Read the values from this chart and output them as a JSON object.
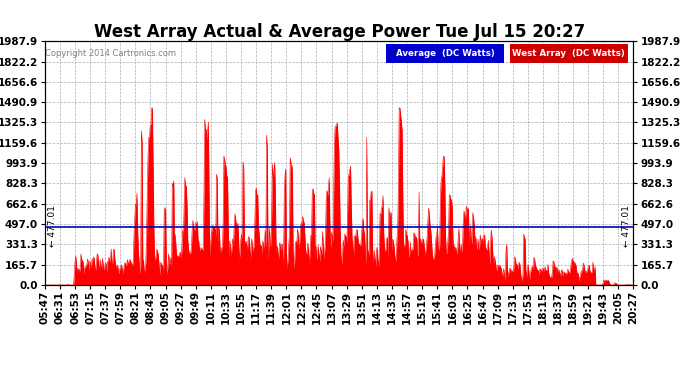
{
  "title": "West Array Actual & Average Power Tue Jul 15 20:27",
  "copyright": "Copyright 2014 Cartronics.com",
  "yticks": [
    0.0,
    165.7,
    331.3,
    497.0,
    662.6,
    828.3,
    993.9,
    1159.6,
    1325.3,
    1490.9,
    1656.6,
    1822.2,
    1987.9
  ],
  "ymax": 1987.9,
  "ymin": 0.0,
  "average_line": 477.01,
  "average_label": "477.01",
  "fill_color": "#ff0000",
  "average_line_color": "#0000bb",
  "background_color": "#ffffff",
  "plot_bg_color": "#ffffff",
  "grid_color": "#999999",
  "legend_avg_bg": "#0000cc",
  "legend_west_bg": "#cc0000",
  "legend_avg_text": "Average  (DC Watts)",
  "legend_west_text": "West Array  (DC Watts)",
  "title_fontsize": 12,
  "tick_fontsize": 7.5,
  "xtick_labels": [
    "05:47",
    "06:31",
    "06:53",
    "07:15",
    "07:37",
    "07:59",
    "08:21",
    "08:43",
    "09:05",
    "09:27",
    "09:49",
    "10:11",
    "10:33",
    "10:55",
    "11:17",
    "11:39",
    "12:01",
    "12:23",
    "12:45",
    "13:07",
    "13:29",
    "13:51",
    "14:13",
    "14:35",
    "14:57",
    "15:19",
    "15:41",
    "16:03",
    "16:25",
    "16:47",
    "17:09",
    "17:31",
    "17:53",
    "18:15",
    "18:37",
    "18:59",
    "19:21",
    "19:43",
    "20:05",
    "20:27"
  ],
  "n_points": 800,
  "seed": 123
}
